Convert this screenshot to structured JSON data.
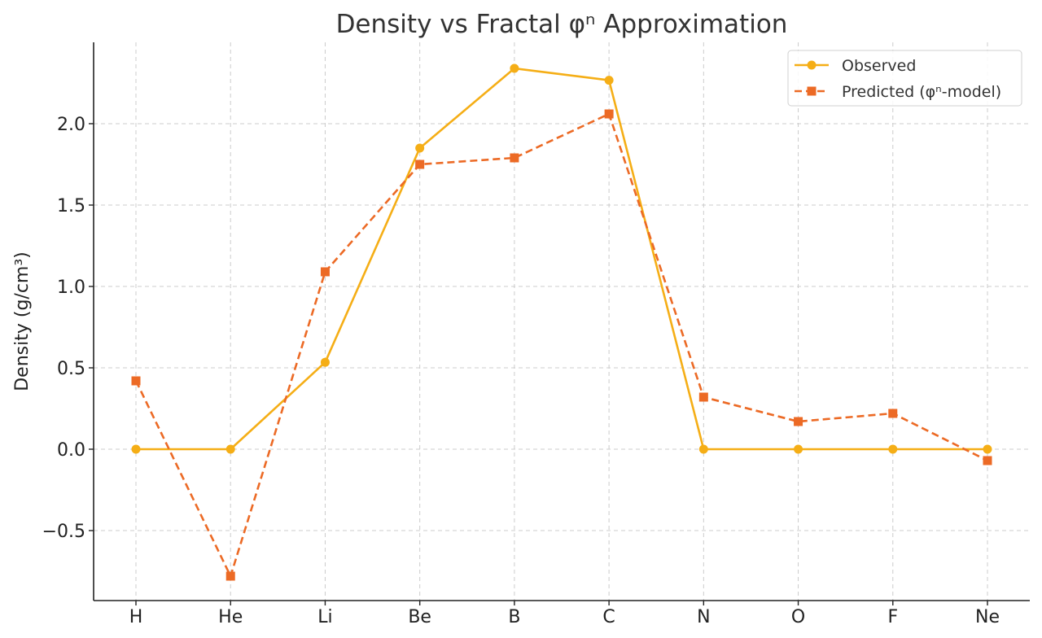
{
  "chart_data": {
    "type": "line",
    "title": "Density vs Fractal φⁿ Approximation",
    "xlabel": "",
    "ylabel": "Density (g/cm³)",
    "categories": [
      "H",
      "He",
      "Li",
      "Be",
      "B",
      "C",
      "N",
      "O",
      "F",
      "Ne"
    ],
    "ylim": [
      -0.93,
      2.5
    ],
    "yticks": [
      -0.5,
      0.0,
      0.5,
      1.0,
      1.5,
      2.0
    ],
    "ytick_labels": [
      "−0.5",
      "0.0",
      "0.5",
      "1.0",
      "1.5",
      "2.0"
    ],
    "grid": true,
    "legend_position": "top-right",
    "series": [
      {
        "name": "Observed",
        "color": "#f5ae16",
        "line_style": "solid",
        "marker": "circle",
        "values": [
          0.0,
          0.0,
          0.534,
          1.85,
          2.34,
          2.267,
          0.0,
          0.0,
          0.0,
          0.0
        ]
      },
      {
        "name": "Predicted (φⁿ-model)",
        "color": "#ec6a25",
        "line_style": "dashed",
        "marker": "square",
        "values": [
          0.42,
          -0.78,
          1.09,
          1.75,
          1.79,
          2.06,
          0.32,
          0.17,
          0.22,
          -0.07
        ]
      }
    ]
  }
}
